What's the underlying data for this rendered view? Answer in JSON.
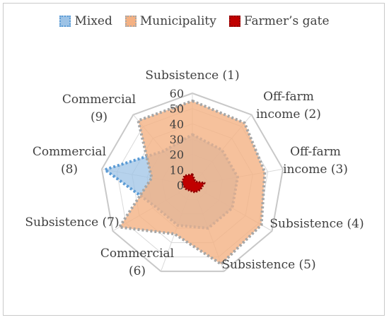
{
  "chart_data": {
    "type": "radar",
    "title": "",
    "categories": [
      [
        "Subsistence (1)"
      ],
      [
        "Off-farm",
        "income (2)"
      ],
      [
        "Off-farm",
        "income (3)"
      ],
      [
        "Subsistence (4)"
      ],
      [
        "Subsistence (5)"
      ],
      [
        "Commercial",
        "(6)"
      ],
      [
        "Subsistence (7)"
      ],
      [
        "Commercial",
        "(8)"
      ],
      [
        "Commercial",
        "(9)"
      ]
    ],
    "axis_ticks": [
      "0",
      "10",
      "20",
      "30",
      "40",
      "50",
      "60"
    ],
    "rmax": 60,
    "legend_position": "top",
    "series": [
      {
        "name": "Mixed",
        "color": "#9dc3e6",
        "border": "#5b9bd5",
        "values": [
          33,
          30,
          30,
          30,
          30,
          28,
          28,
          58,
          29
        ]
      },
      {
        "name": "Municipality",
        "color": "#f4b183",
        "border": "#a6a6a6",
        "values": [
          55,
          53,
          48,
          52,
          55,
          34,
          55,
          27,
          55
        ]
      },
      {
        "name": "Farmer’s gate",
        "color": "#c00000",
        "border": "#8b0000",
        "values": [
          7,
          3,
          8,
          6,
          5,
          4,
          5,
          7,
          8
        ]
      }
    ]
  }
}
